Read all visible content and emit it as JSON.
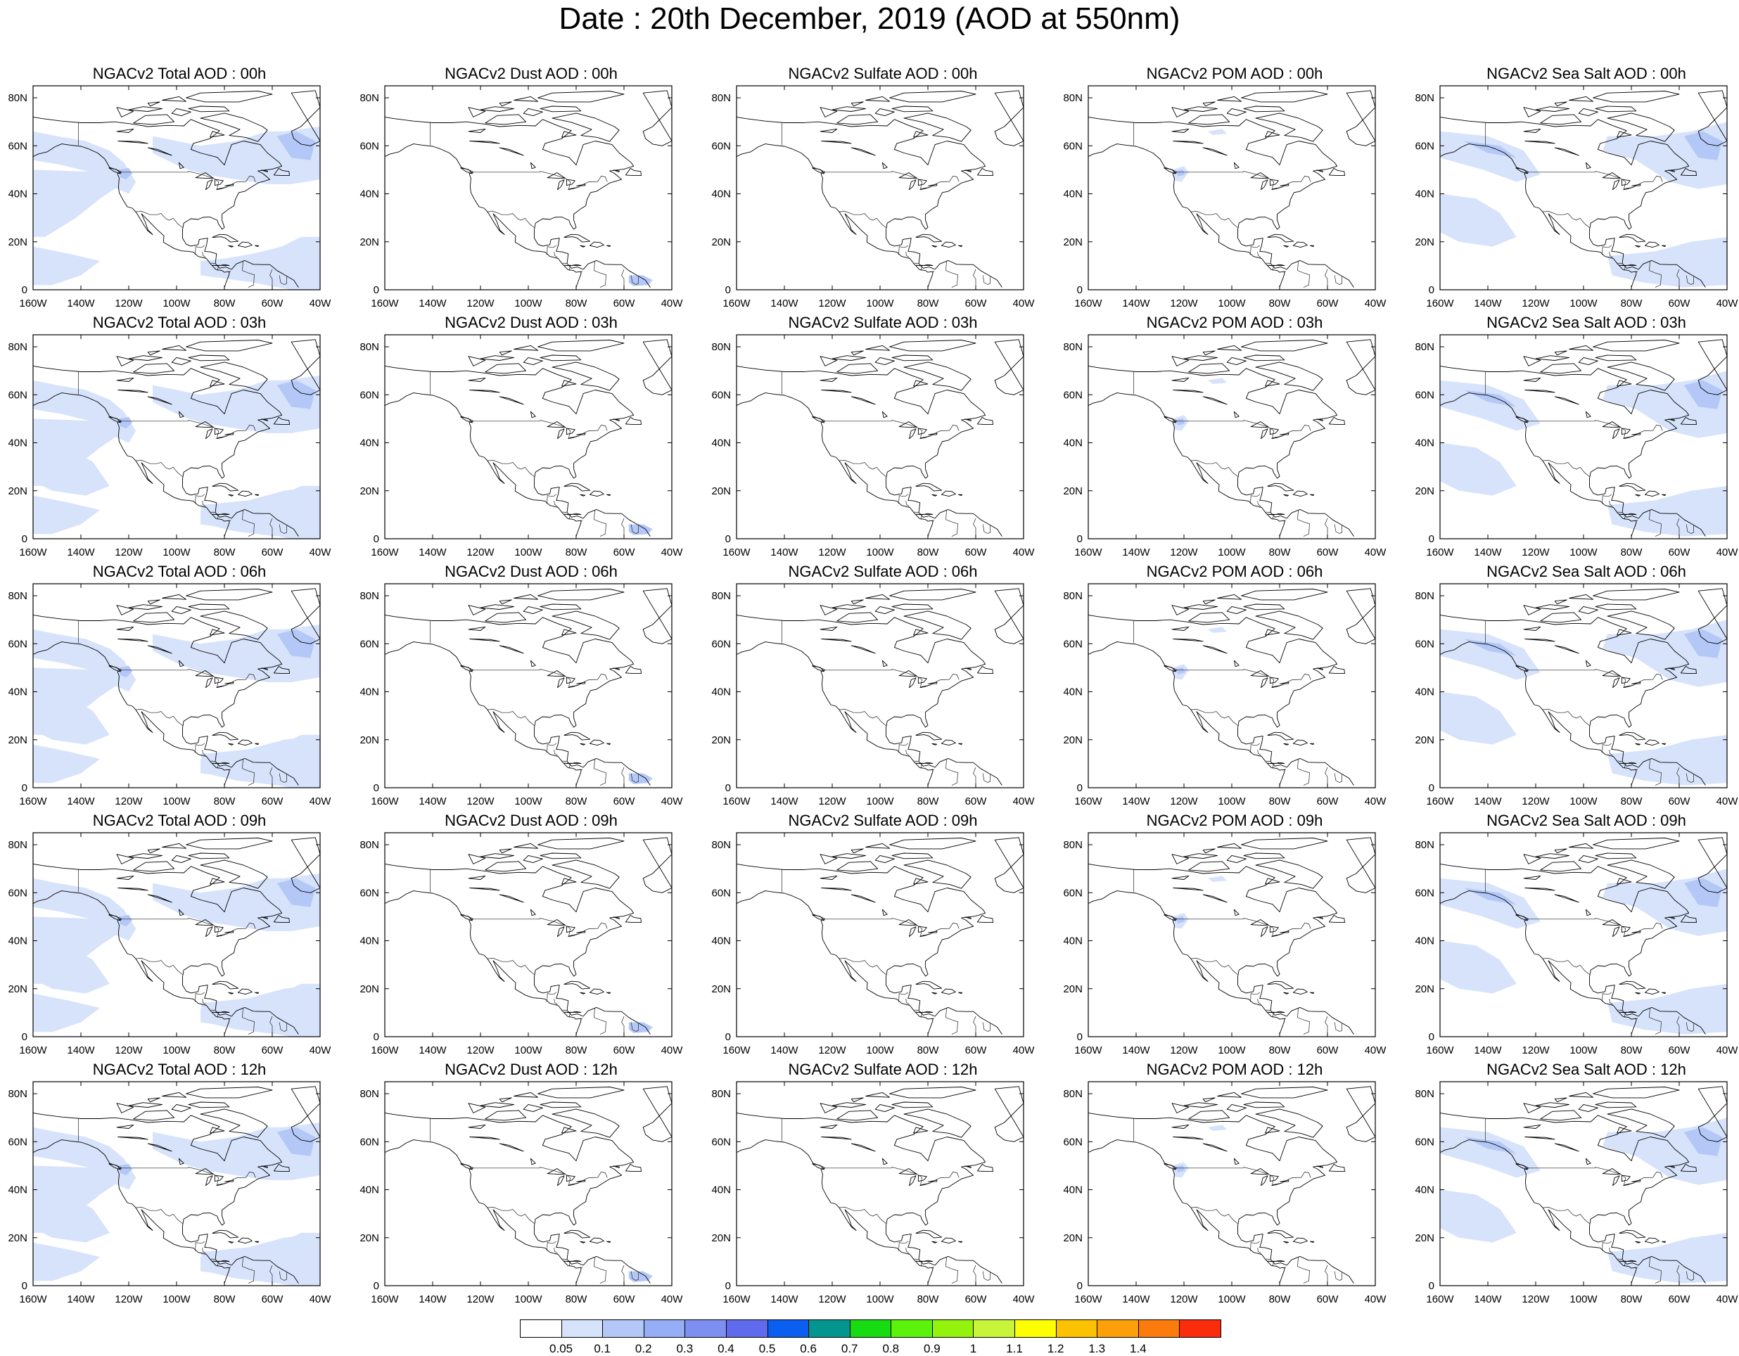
{
  "title": "Date : 20th December, 2019 (AOD at 550nm)",
  "x_ticks": [
    "160W",
    "140W",
    "120W",
    "100W",
    "80W",
    "60W",
    "40W"
  ],
  "y_ticks": [
    "0",
    "20N",
    "40N",
    "60N",
    "80N"
  ],
  "panel_titles": [
    [
      "NGACv2 Total AOD : 00h",
      "NGACv2 Dust AOD : 00h",
      "NGACv2 Sulfate AOD : 00h",
      "NGACv2 POM AOD : 00h",
      "NGACv2 Sea Salt AOD : 00h"
    ],
    [
      "NGACv2 Total AOD : 03h",
      "NGACv2 Dust AOD : 03h",
      "NGACv2 Sulfate AOD : 03h",
      "NGACv2 POM AOD : 03h",
      "NGACv2 Sea Salt AOD : 03h"
    ],
    [
      "NGACv2 Total AOD : 06h",
      "NGACv2 Dust AOD : 06h",
      "NGACv2 Sulfate AOD : 06h",
      "NGACv2 POM AOD : 06h",
      "NGACv2 Sea Salt AOD : 06h"
    ],
    [
      "NGACv2 Total AOD : 09h",
      "NGACv2 Dust AOD : 09h",
      "NGACv2 Sulfate AOD : 09h",
      "NGACv2 POM AOD : 09h",
      "NGACv2 Sea Salt  AOD : 09h"
    ],
    [
      "NGACv2 Total AOD  : 12h",
      "NGACv2 Dust AOD : 12h",
      "NGACv2 Sulfate AOD : 12h",
      "NGACv2 POM  AOD : 12h",
      "NGACv2 Sea Salt  AOD : 12h"
    ]
  ],
  "colorbar": {
    "colors": [
      "#ffffff",
      "#d7e3fb",
      "#b4c8f8",
      "#95aef5",
      "#7e8ff2",
      "#5f6bec",
      "#0a5ff0",
      "#04958f",
      "#18dc12",
      "#5cf20c",
      "#94f30c",
      "#c8f43a",
      "#fefe02",
      "#fcc200",
      "#fba00a",
      "#fb7b0c",
      "#fb2c0c"
    ],
    "labels": [
      "0.05",
      "0.1",
      "0.2",
      "0.3",
      "0.4",
      "0.5",
      "0.6",
      "0.7",
      "0.8",
      "0.9",
      "1",
      "1.1",
      "1.2",
      "1.3",
      "1.4"
    ]
  }
}
